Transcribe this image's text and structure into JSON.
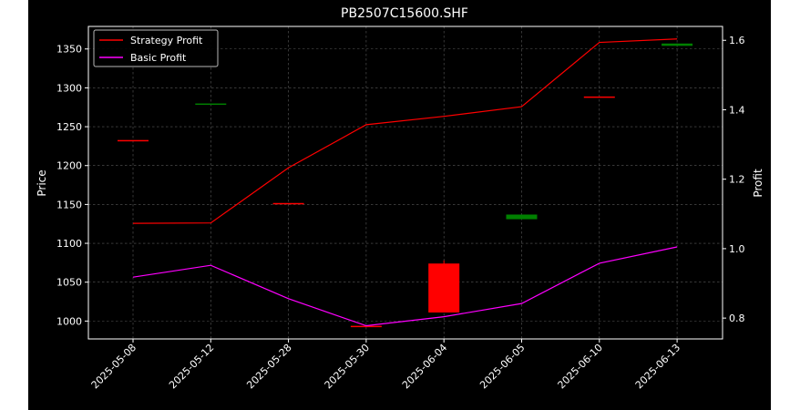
{
  "chart_data": {
    "type": "candlestick_with_lines",
    "title": "PB2507C15600.SHF",
    "xlabel": "",
    "ylabel_left": "Price",
    "ylabel_right": "Profit",
    "categories": [
      "2025-05-08",
      "2025-05-12",
      "2025-05-28",
      "2025-05-30",
      "2025-06-04",
      "2025-06-05",
      "2025-06-10",
      "2025-06-13"
    ],
    "ylim_left": [
      977,
      1379
    ],
    "yticks_left": [
      1000,
      1050,
      1100,
      1150,
      1200,
      1250,
      1300,
      1350
    ],
    "ylim_right": [
      0.74,
      1.64
    ],
    "yticks_right": [
      0.8,
      1.0,
      1.2,
      1.4,
      1.6
    ],
    "grid": true,
    "legend_position": "top-left",
    "candles": [
      {
        "date": "2025-05-08",
        "open": 1232,
        "high": 1232,
        "low": 1232,
        "close": 1232,
        "color": "#ff0000"
      },
      {
        "date": "2025-05-12",
        "open": 1279,
        "high": 1279,
        "low": 1279,
        "close": 1279,
        "color": "#008000"
      },
      {
        "date": "2025-05-28",
        "open": 1151,
        "high": 1151,
        "low": 1151,
        "close": 1151,
        "color": "#ff0000"
      },
      {
        "date": "2025-05-30",
        "open": 993,
        "high": 993,
        "low": 993,
        "close": 993,
        "color": "#ff0000"
      },
      {
        "date": "2025-06-04",
        "open": 1074,
        "high": 1078,
        "low": 1011,
        "close": 1011,
        "color": "#ff0000"
      },
      {
        "date": "2025-06-05",
        "open": 1131,
        "high": 1137,
        "low": 1131,
        "close": 1137,
        "color": "#008000"
      },
      {
        "date": "2025-06-10",
        "open": 1288,
        "high": 1288,
        "low": 1288,
        "close": 1288,
        "color": "#ff0000"
      },
      {
        "date": "2025-06-13",
        "open": 1354,
        "high": 1357,
        "low": 1354,
        "close": 1357,
        "color": "#008000"
      }
    ],
    "series": [
      {
        "name": "Strategy Profit",
        "color": "#ff0000",
        "axis": "right",
        "values": [
          1.073,
          1.074,
          1.233,
          1.357,
          1.381,
          1.409,
          1.594,
          1.604
        ]
      },
      {
        "name": "Basic Profit",
        "color": "#ff00ff",
        "axis": "right",
        "values": [
          0.918,
          0.952,
          0.856,
          0.778,
          0.804,
          0.842,
          0.958,
          1.005
        ]
      }
    ]
  }
}
